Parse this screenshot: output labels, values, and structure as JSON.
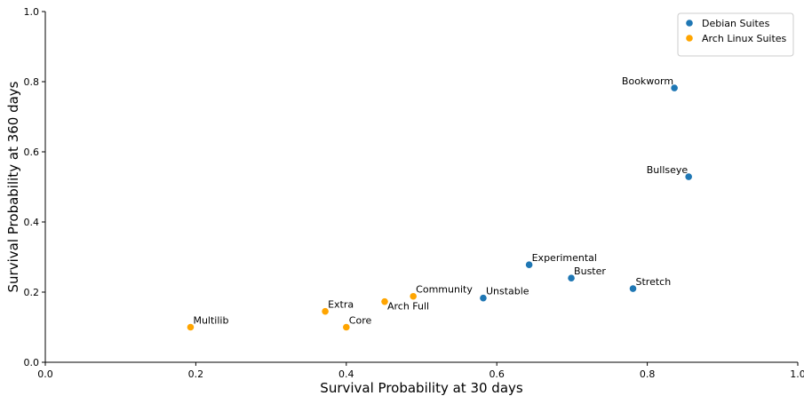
{
  "chart_data": {
    "type": "scatter",
    "title": "",
    "xlabel": "Survival Probability at 30 days",
    "ylabel": "Survival Probability at 360 days",
    "xlim": [
      0.0,
      1.0
    ],
    "ylim": [
      0.0,
      1.0
    ],
    "xticks": [
      "0.0",
      "0.2",
      "0.4",
      "0.6",
      "0.8",
      "1.0"
    ],
    "yticks": [
      "0.0",
      "0.2",
      "0.4",
      "0.6",
      "0.8",
      "1.0"
    ],
    "grid": false,
    "legend_position": "top-right",
    "series": [
      {
        "name": "Debian Suites",
        "color": "#1f77b4",
        "points": [
          {
            "label": "Bookworm",
            "x": 0.836,
            "y": 0.782,
            "anchor": "left"
          },
          {
            "label": "Bullseye",
            "x": 0.855,
            "y": 0.529,
            "anchor": "left"
          },
          {
            "label": "Experimental",
            "x": 0.643,
            "y": 0.278,
            "anchor": "right"
          },
          {
            "label": "Buster",
            "x": 0.699,
            "y": 0.24,
            "anchor": "right"
          },
          {
            "label": "Stretch",
            "x": 0.781,
            "y": 0.21,
            "anchor": "right"
          },
          {
            "label": "Unstable",
            "x": 0.582,
            "y": 0.183,
            "anchor": "right"
          }
        ]
      },
      {
        "name": "Arch Linux Suites",
        "color": "#ffa500",
        "points": [
          {
            "label": "Multilib",
            "x": 0.193,
            "y": 0.1,
            "anchor": "right"
          },
          {
            "label": "Extra",
            "x": 0.372,
            "y": 0.145,
            "anchor": "right"
          },
          {
            "label": "Core",
            "x": 0.4,
            "y": 0.1,
            "anchor": "right"
          },
          {
            "label": "Arch Full",
            "x": 0.451,
            "y": 0.173,
            "anchor": "below-right"
          },
          {
            "label": "Community",
            "x": 0.489,
            "y": 0.188,
            "anchor": "right"
          }
        ]
      }
    ]
  }
}
